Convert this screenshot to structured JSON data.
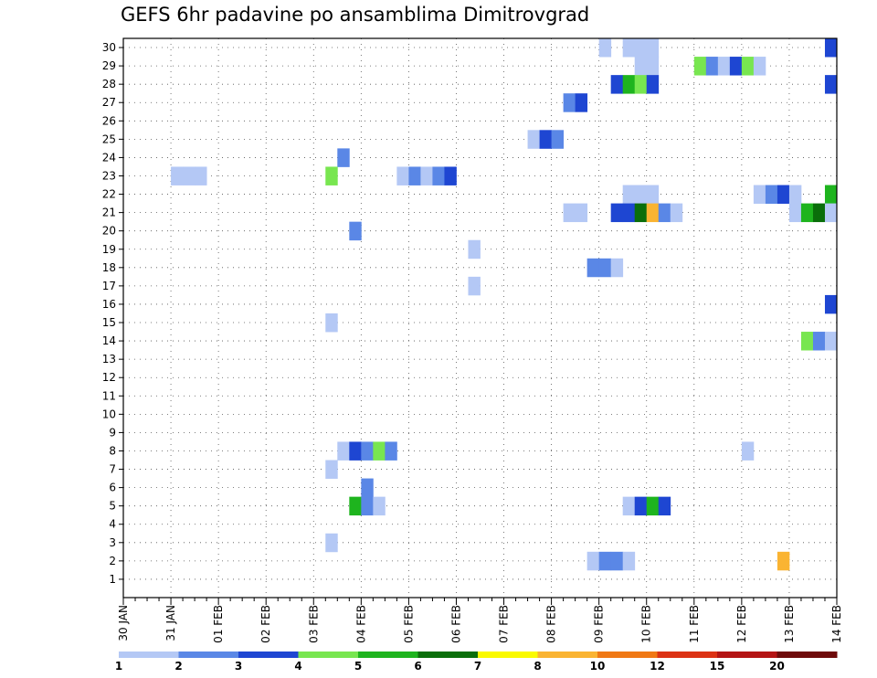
{
  "chart_data": {
    "type": "heatmap",
    "title": "GEFS 6hr padavine po ansamblima Dimitrovgrad",
    "x_tick_labels": [
      "30 JAN",
      "31 JAN",
      "01 FEB",
      "02 FEB",
      "03 FEB",
      "04 FEB",
      "05 FEB",
      "06 FEB",
      "07 FEB",
      "08 FEB",
      "09 FEB",
      "10 FEB",
      "11 FEB",
      "12 FEB",
      "13 FEB",
      "14 FEB"
    ],
    "y_tick_labels": [
      "1",
      "2",
      "3",
      "4",
      "5",
      "6",
      "7",
      "8",
      "9",
      "10",
      "11",
      "12",
      "13",
      "14",
      "15",
      "16",
      "17",
      "18",
      "19",
      "20",
      "21",
      "22",
      "23",
      "24",
      "25",
      "26",
      "27",
      "28",
      "29",
      "30"
    ],
    "x_unit": "6h steps from 30 JAN 00UTC",
    "xlim": [
      0,
      60
    ],
    "ylim": [
      0,
      30.5
    ],
    "grid": true,
    "colorbar": {
      "position": "bottom",
      "labels": [
        "1",
        "2",
        "3",
        "4",
        "5",
        "6",
        "7",
        "8",
        "10",
        "12",
        "15",
        "20"
      ],
      "colors": [
        "#b4c8f5",
        "#5a87e6",
        "#1e46d2",
        "#78e650",
        "#1eb41e",
        "#0a6e0a",
        "#fafa00",
        "#fab432",
        "#f07814",
        "#dc3214",
        "#b41414",
        "#6e0a0a"
      ]
    },
    "cells": [
      [
        40.5,
        30,
        1
      ],
      [
        42.5,
        30,
        1
      ],
      [
        43.5,
        30,
        1
      ],
      [
        44.5,
        30,
        1
      ],
      [
        59.5,
        30,
        3
      ],
      [
        43.5,
        29,
        1
      ],
      [
        44.5,
        29,
        1
      ],
      [
        48.5,
        29,
        4
      ],
      [
        49.5,
        29,
        2
      ],
      [
        50.5,
        29,
        1
      ],
      [
        51.5,
        29,
        3
      ],
      [
        52.5,
        29,
        4
      ],
      [
        53.5,
        29,
        1
      ],
      [
        41.5,
        28,
        3
      ],
      [
        42.5,
        28,
        5
      ],
      [
        43.5,
        28,
        4
      ],
      [
        44.5,
        28,
        3
      ],
      [
        59.5,
        28,
        3
      ],
      [
        37.5,
        27,
        2
      ],
      [
        38.5,
        27,
        3
      ],
      [
        34.5,
        25,
        1
      ],
      [
        35.5,
        25,
        3
      ],
      [
        36.5,
        25,
        2
      ],
      [
        18.5,
        24,
        2
      ],
      [
        4.5,
        23,
        1
      ],
      [
        5.5,
        23,
        1
      ],
      [
        6.5,
        23,
        1
      ],
      [
        17.5,
        23,
        4
      ],
      [
        23.5,
        23,
        1
      ],
      [
        24.5,
        23,
        2
      ],
      [
        25.5,
        23,
        1
      ],
      [
        26.5,
        23,
        2
      ],
      [
        27.5,
        23,
        3
      ],
      [
        42.5,
        22,
        1
      ],
      [
        43.5,
        22,
        1
      ],
      [
        44.5,
        22,
        1
      ],
      [
        53.5,
        22,
        1
      ],
      [
        54.5,
        22,
        2
      ],
      [
        55.5,
        22,
        3
      ],
      [
        56.5,
        22,
        1
      ],
      [
        59.5,
        22,
        5
      ],
      [
        37.5,
        21,
        1
      ],
      [
        38.5,
        21,
        1
      ],
      [
        41.5,
        21,
        3
      ],
      [
        42.5,
        21,
        3
      ],
      [
        43.5,
        21,
        6
      ],
      [
        44.5,
        21,
        8
      ],
      [
        45.5,
        21,
        2
      ],
      [
        46.5,
        21,
        1
      ],
      [
        56.5,
        21,
        1
      ],
      [
        57.5,
        21,
        5
      ],
      [
        58.5,
        21,
        6
      ],
      [
        59.5,
        21,
        1
      ],
      [
        19.5,
        20,
        2
      ],
      [
        29.5,
        19,
        1
      ],
      [
        39.5,
        18,
        2
      ],
      [
        40.5,
        18,
        2
      ],
      [
        41.5,
        18,
        1
      ],
      [
        29.5,
        17,
        1
      ],
      [
        59.5,
        16,
        3
      ],
      [
        17.5,
        15,
        1
      ],
      [
        57.5,
        14,
        4
      ],
      [
        58.5,
        14,
        2
      ],
      [
        59.5,
        14,
        1
      ],
      [
        18.5,
        8,
        1
      ],
      [
        19.5,
        8,
        3
      ],
      [
        20.5,
        8,
        2
      ],
      [
        21.5,
        8,
        4
      ],
      [
        22.5,
        8,
        2
      ],
      [
        52.5,
        8,
        1
      ],
      [
        17.5,
        7,
        1
      ],
      [
        20.5,
        6,
        2
      ],
      [
        19.5,
        5,
        5
      ],
      [
        20.5,
        5,
        2
      ],
      [
        21.5,
        5,
        1
      ],
      [
        42.5,
        5,
        1
      ],
      [
        43.5,
        5,
        3
      ],
      [
        44.5,
        5,
        5
      ],
      [
        45.5,
        5,
        3
      ],
      [
        17.5,
        3,
        1
      ],
      [
        39.5,
        2,
        1
      ],
      [
        40.5,
        2,
        2
      ],
      [
        41.5,
        2,
        2
      ],
      [
        42.5,
        2,
        1
      ],
      [
        55.5,
        2,
        8
      ]
    ]
  }
}
